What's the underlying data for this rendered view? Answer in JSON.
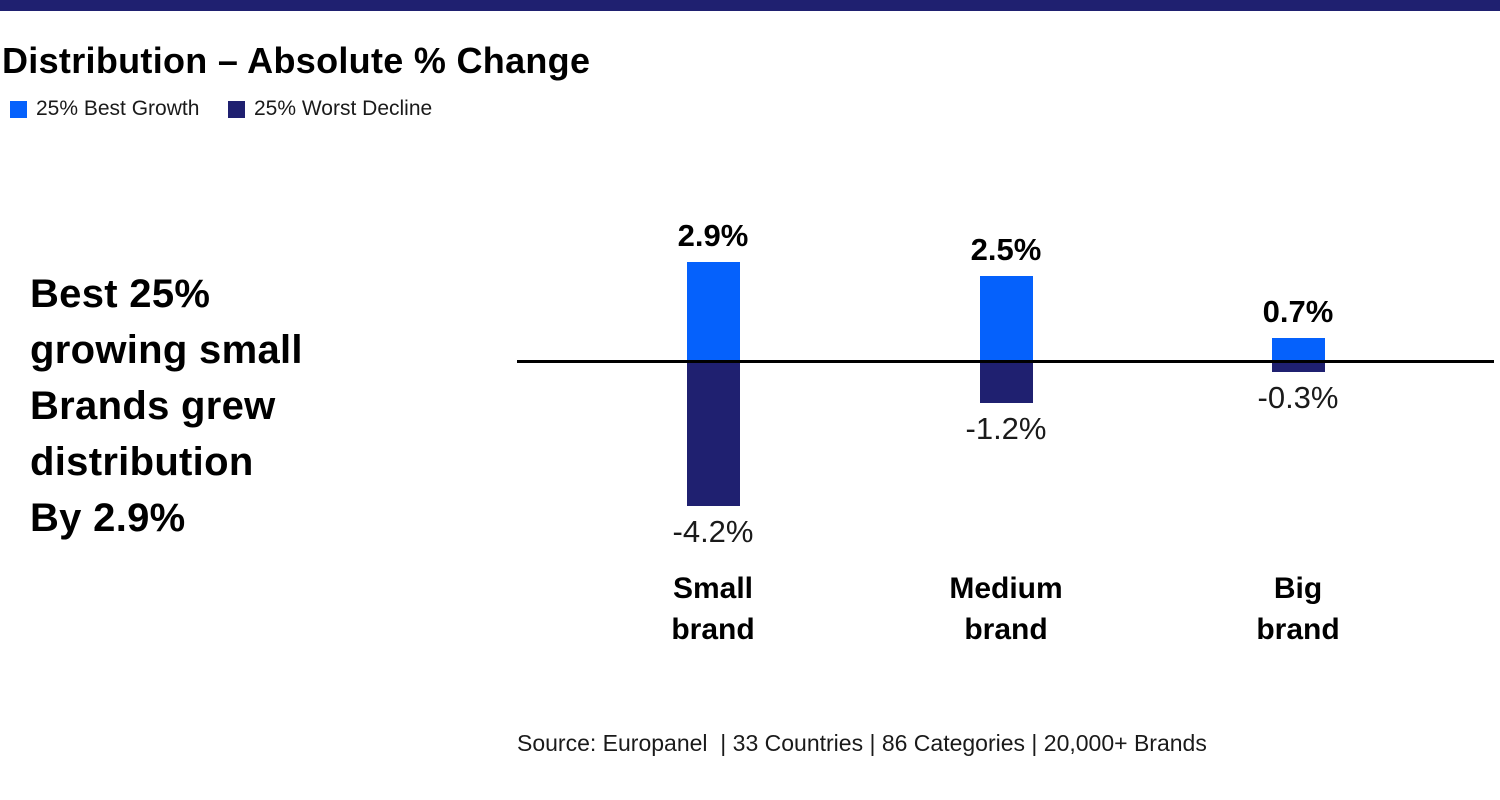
{
  "accent_bar": {
    "color": "#1f2070"
  },
  "title": "Distribution – Absolute % Change",
  "legend": [
    {
      "label": "25% Best Growth",
      "color": "#0561fc"
    },
    {
      "label": "25% Worst Decline",
      "color": "#1f2070"
    }
  ],
  "headline": {
    "lines": [
      "Best 25%",
      "growing small",
      "Brands grew",
      "distribution",
      "By 2.9%"
    ]
  },
  "source": "Source: Europanel  | 33 Countries | 86 Categories | 20,000+ Brands",
  "chart_data": {
    "type": "bar",
    "title": "Distribution – Absolute % Change",
    "categories": [
      "Small brand",
      "Medium brand",
      "Big brand"
    ],
    "category_lines": [
      [
        "Small",
        "brand"
      ],
      [
        "Medium",
        "brand"
      ],
      [
        "Big",
        "brand"
      ]
    ],
    "series": [
      {
        "name": "25% Best Growth",
        "color": "#0561fc",
        "values": [
          2.9,
          2.5,
          0.7
        ]
      },
      {
        "name": "25% Worst Decline",
        "color": "#1f2070",
        "values": [
          -4.2,
          -1.2,
          -0.3
        ]
      }
    ],
    "value_labels": {
      "positive": [
        "2.9%",
        "2.5%",
        "0.7%"
      ],
      "negative": [
        "-4.2%",
        "-1.2%",
        "-0.3%"
      ]
    },
    "baseline": 0,
    "ylim": [
      -4.5,
      3.2
    ],
    "grid": false,
    "legend_position": "top-left",
    "zero_line_color": "#000000"
  }
}
